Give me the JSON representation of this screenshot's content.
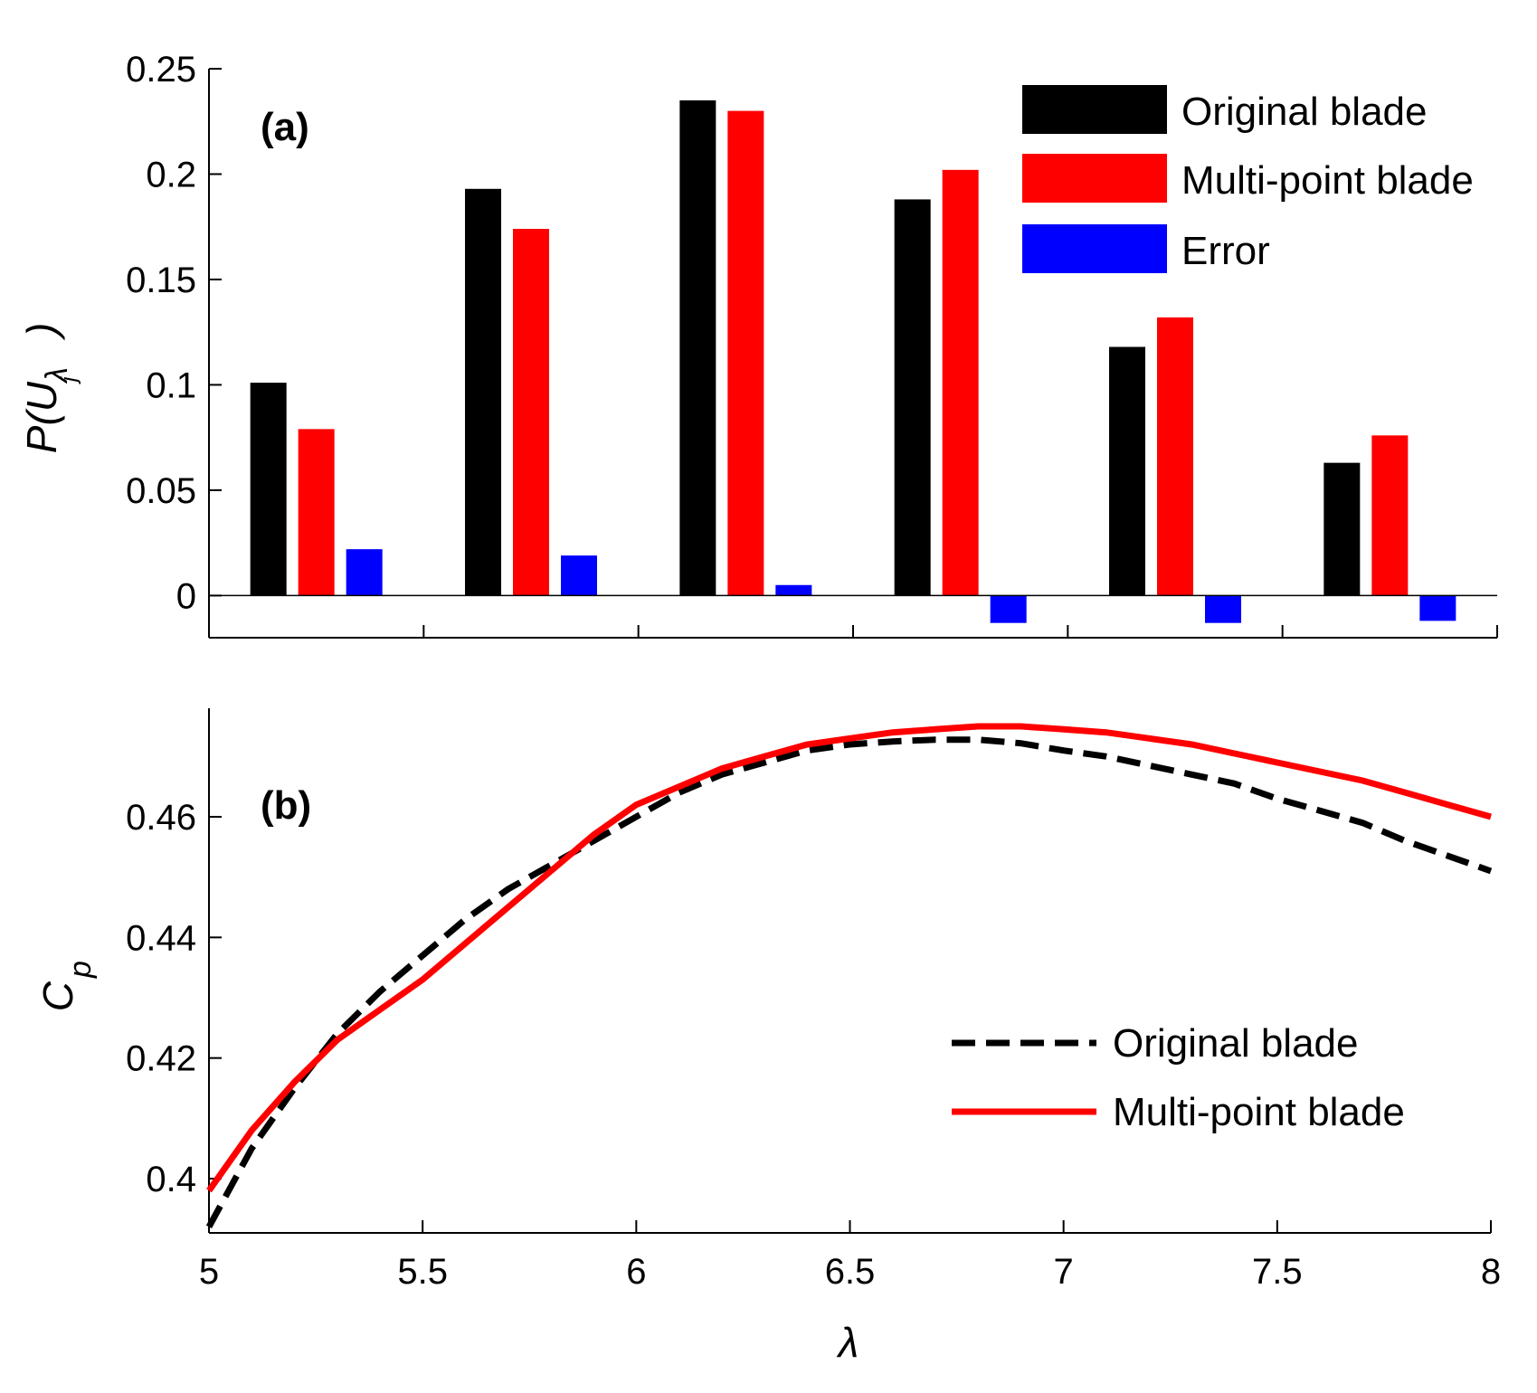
{
  "chart_data": [
    {
      "type": "bar",
      "panel_label": "(a)",
      "categories": [
        "5.25",
        "5.75",
        "6.25",
        "6.75",
        "7.25",
        "7.75"
      ],
      "series": [
        {
          "name": "Original blade",
          "color": "#000000",
          "values": [
            0.101,
            0.193,
            0.235,
            0.188,
            0.118,
            0.063
          ]
        },
        {
          "name": "Multi-point blade",
          "color": "#ff0000",
          "values": [
            0.079,
            0.174,
            0.23,
            0.202,
            0.132,
            0.076
          ]
        },
        {
          "name": "Error",
          "color": "#0000ff",
          "values": [
            0.022,
            0.019,
            0.005,
            -0.013,
            -0.013,
            -0.012
          ]
        }
      ],
      "ylabel": {
        "main": "P(U",
        "subscript": "λ",
        "sub_subscript": "j",
        "close": ")"
      },
      "ylim": [
        -0.02,
        0.25
      ],
      "yticks": [
        "0",
        "0.05",
        "0.1",
        "0.15",
        "0.2",
        "0.25"
      ],
      "xlim": [
        5,
        8
      ],
      "legend_position": "top-right"
    },
    {
      "type": "line",
      "panel_label": "(b)",
      "x": [
        5.0,
        5.1,
        5.2,
        5.3,
        5.4,
        5.5,
        5.6,
        5.7,
        5.8,
        5.9,
        6.0,
        6.1,
        6.2,
        6.3,
        6.4,
        6.5,
        6.6,
        6.7,
        6.8,
        6.9,
        7.0,
        7.1,
        7.2,
        7.3,
        7.4,
        7.5,
        7.6,
        7.7,
        7.8,
        7.9,
        8.0
      ],
      "series": [
        {
          "name": "Original blade",
          "color": "#000000",
          "style": "dashed",
          "values": [
            0.392,
            0.405,
            0.415,
            0.424,
            0.431,
            0.437,
            0.443,
            0.448,
            0.452,
            0.456,
            0.46,
            0.464,
            0.467,
            0.469,
            0.471,
            0.472,
            0.4725,
            0.4728,
            0.4728,
            0.4722,
            0.471,
            0.47,
            0.4685,
            0.467,
            0.4655,
            0.463,
            0.461,
            0.459,
            0.456,
            0.4535,
            0.451
          ]
        },
        {
          "name": "Multi-point blade",
          "color": "#ff0000",
          "style": "solid",
          "values": [
            0.398,
            0.408,
            0.416,
            0.423,
            0.428,
            0.433,
            0.439,
            0.445,
            0.451,
            0.457,
            0.462,
            0.465,
            0.468,
            0.47,
            0.472,
            0.473,
            0.474,
            0.4745,
            0.475,
            0.475,
            0.4745,
            0.474,
            0.473,
            0.472,
            0.4705,
            0.469,
            0.4675,
            0.466,
            0.464,
            0.462,
            0.46
          ]
        }
      ],
      "xlabel": "λ",
      "ylabel": {
        "main": "C",
        "subscript": "p"
      },
      "xlim": [
        5,
        8
      ],
      "ylim": [
        0.391,
        0.478
      ],
      "xticks": [
        "5",
        "5.5",
        "6",
        "6.5",
        "7",
        "7.5",
        "8"
      ],
      "yticks": [
        "0.4",
        "0.42",
        "0.44",
        "0.46"
      ],
      "legend_position": "bottom-right"
    }
  ]
}
